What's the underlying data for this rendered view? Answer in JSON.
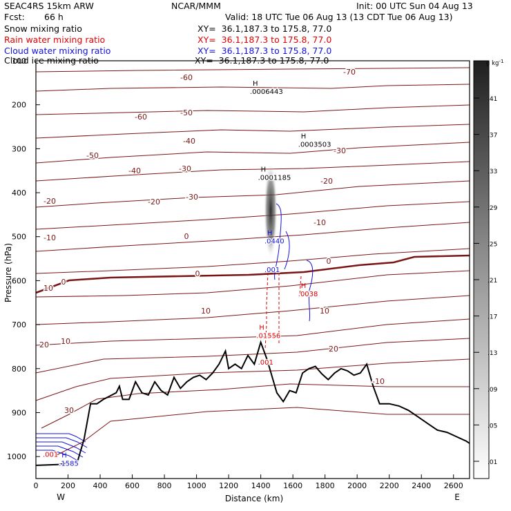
{
  "header": {
    "model": "SEAC4RS 15km ARW",
    "org": "NCAR/MMM",
    "init": "Init: 00 UTC Sun 04 Aug 13",
    "fcst_label": "Fcst:",
    "fcst_value": "66 h",
    "valid": "Valid: 18 UTC Tue 06 Aug 13 (13 CDT Tue 06 Aug 13)"
  },
  "fields": [
    {
      "name": "Snow mixing ratio",
      "xy": "XY=  36.1,187.3 to 175.8, 77.0",
      "color": "#000000"
    },
    {
      "name": "Rain water mixing ratio",
      "xy": "XY=  36.1,187.3 to 175.8, 77.0",
      "color": "#e00000"
    },
    {
      "name": "Cloud water mixing ratio",
      "xy": "XY=  36.1,187.3 to 175.8, 77.0",
      "color": "#1010e0"
    },
    {
      "name": "Cloud ice mixing ratio",
      "xy": "XY=  36.1,187.3 to 175.8, 77.0",
      "color": "#000000"
    }
  ],
  "chart_data": {
    "type": "contour cross-section",
    "xlabel": "Distance (km)",
    "ylabel": "Pressure (hPa)",
    "x_range": [
      0,
      2700
    ],
    "y_range": [
      1050,
      100
    ],
    "x_ticks": [
      0,
      200,
      400,
      600,
      800,
      1000,
      1200,
      1400,
      1600,
      1800,
      2000,
      2200,
      2400,
      2600
    ],
    "y_ticks": [
      100,
      200,
      300,
      400,
      500,
      600,
      700,
      800,
      900,
      1000
    ],
    "x_end_labels": {
      "left": "W",
      "right": "E"
    },
    "temperature_contour_color": "#7a1515",
    "temperature_labels": [
      "-70",
      "-60",
      "-60",
      "-50",
      "-50",
      "-40",
      "-40",
      "-30",
      "-30",
      "-30",
      "-20",
      "-20",
      "-20",
      "-10",
      "-10",
      "0",
      "0",
      "0",
      "0",
      "10",
      "10",
      "10",
      "10",
      "20",
      "20",
      "30",
      "-10"
    ],
    "maxima": [
      {
        "label": "H",
        "value": ".0006443",
        "color": "#000000",
        "x_km": 1350,
        "p_hpa": 160
      },
      {
        "label": "H",
        "value": ".0003503",
        "color": "#000000",
        "x_km": 1650,
        "p_hpa": 280
      },
      {
        "label": "H",
        "value": ".0001185",
        "color": "#000000",
        "x_km": 1400,
        "p_hpa": 355
      },
      {
        "label": "H",
        "value": ".0440",
        "color": "#1010e0",
        "x_km": 1440,
        "p_hpa": 500
      },
      {
        "label": "",
        "value": ".001",
        "color": "#1010e0",
        "x_km": 1440,
        "p_hpa": 565
      },
      {
        "label": "H",
        "value": ".0038",
        "color": "#e00000",
        "x_km": 1650,
        "p_hpa": 620
      },
      {
        "label": "H",
        "value": ".01556",
        "color": "#e00000",
        "x_km": 1390,
        "p_hpa": 715
      },
      {
        "label": "",
        "value": ".001",
        "color": "#e00000",
        "x_km": 1400,
        "p_hpa": 775
      },
      {
        "label": "H",
        "value": ".1585",
        "color": "#1010e0",
        "x_km": 160,
        "p_hpa": 1005
      },
      {
        "label": "",
        "value": ".001",
        "color": "#e00000",
        "x_km": 60,
        "p_hpa": 985
      }
    ],
    "colorbar": {
      "unit": "g kg",
      "unit_exp": "-1",
      "levels": [
        ".41",
        ".37",
        ".33",
        ".29",
        ".25",
        ".21",
        ".17",
        ".13",
        ".09",
        ".05",
        ".01"
      ]
    },
    "terrain": [
      [
        0,
        1020
      ],
      [
        150,
        1018
      ],
      [
        260,
        1010
      ],
      [
        300,
        960
      ],
      [
        340,
        880
      ],
      [
        380,
        880
      ],
      [
        420,
        870
      ],
      [
        500,
        855
      ],
      [
        520,
        840
      ],
      [
        540,
        870
      ],
      [
        580,
        870
      ],
      [
        620,
        830
      ],
      [
        660,
        855
      ],
      [
        700,
        860
      ],
      [
        740,
        830
      ],
      [
        780,
        850
      ],
      [
        820,
        860
      ],
      [
        860,
        820
      ],
      [
        900,
        845
      ],
      [
        940,
        830
      ],
      [
        980,
        820
      ],
      [
        1020,
        815
      ],
      [
        1060,
        825
      ],
      [
        1100,
        810
      ],
      [
        1140,
        790
      ],
      [
        1180,
        760
      ],
      [
        1200,
        800
      ],
      [
        1240,
        790
      ],
      [
        1280,
        800
      ],
      [
        1320,
        770
      ],
      [
        1360,
        790
      ],
      [
        1400,
        740
      ],
      [
        1440,
        780
      ],
      [
        1480,
        830
      ],
      [
        1500,
        855
      ],
      [
        1540,
        875
      ],
      [
        1580,
        850
      ],
      [
        1620,
        855
      ],
      [
        1660,
        810
      ],
      [
        1700,
        800
      ],
      [
        1740,
        795
      ],
      [
        1780,
        812
      ],
      [
        1820,
        825
      ],
      [
        1860,
        810
      ],
      [
        1900,
        800
      ],
      [
        1940,
        805
      ],
      [
        1980,
        815
      ],
      [
        2020,
        810
      ],
      [
        2060,
        790
      ],
      [
        2100,
        840
      ],
      [
        2140,
        880
      ],
      [
        2200,
        880
      ],
      [
        2260,
        885
      ],
      [
        2320,
        895
      ],
      [
        2380,
        910
      ],
      [
        2440,
        925
      ],
      [
        2500,
        940
      ],
      [
        2560,
        945
      ],
      [
        2620,
        955
      ],
      [
        2680,
        965
      ],
      [
        2700,
        970
      ]
    ]
  }
}
